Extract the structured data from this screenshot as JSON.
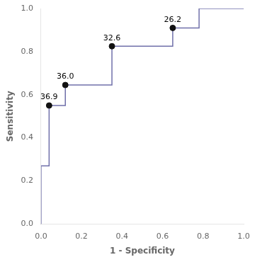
{
  "chart_data": {
    "type": "line",
    "xlabel": "1 - Specificity",
    "ylabel": "Sensitivity",
    "xlim": [
      0.0,
      1.0
    ],
    "ylim": [
      0.0,
      1.0
    ],
    "xticks": [
      {
        "value": 0.0,
        "label": "0.0"
      },
      0.2,
      0.4,
      0.6,
      0.8,
      {
        "value": 1.0,
        "label": "1.0"
      }
    ],
    "yticks": [
      {
        "value": 0.0,
        "label": "0.0"
      },
      0.2,
      0.4,
      0.6,
      0.8,
      {
        "value": 1.0,
        "label": "1.0"
      }
    ],
    "grid": false,
    "series": [
      {
        "type": "line",
        "color": "#7070aa",
        "x": [
          0.0,
          0.0,
          0.04,
          0.04,
          0.12,
          0.12,
          0.35,
          0.35,
          0.65,
          0.65,
          0.78,
          0.78,
          1.0
        ],
        "values": [
          0.0,
          0.27,
          0.27,
          0.55,
          0.55,
          0.645,
          0.645,
          0.825,
          0.825,
          0.91,
          0.91,
          1.0,
          1.0
        ]
      },
      {
        "type": "scatter",
        "color": "#111111",
        "marker": "circle",
        "x": [
          0.04,
          0.12,
          0.35,
          0.65
        ],
        "values": [
          0.55,
          0.645,
          0.825,
          0.91
        ]
      }
    ],
    "annotations": [
      {
        "x": 0.04,
        "y": 0.55,
        "text": "36.9"
      },
      {
        "x": 0.12,
        "y": 0.645,
        "text": "36.0"
      },
      {
        "x": 0.35,
        "y": 0.825,
        "text": "32.6"
      },
      {
        "x": 0.65,
        "y": 0.91,
        "text": "26.2"
      }
    ]
  }
}
